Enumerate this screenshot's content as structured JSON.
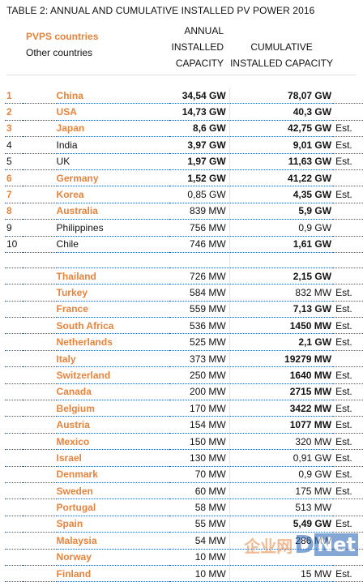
{
  "title": "TABLE 2: ANNUAL AND CUMULATIVE INSTALLED PV POWER 2016",
  "legend": {
    "pvps": "PVPS countries",
    "other": "Other countries"
  },
  "headers": {
    "annual": [
      "ANNUAL",
      "INSTALLED",
      "CAPACITY"
    ],
    "cumulative": [
      "CUMULATIVE",
      "INSTALLED CAPACITY"
    ]
  },
  "colors": {
    "pvps": "#e8833a",
    "rule": "#1f5fb4"
  },
  "rows": [
    {
      "rank": "1",
      "country": "China",
      "annual": "34,54 GW",
      "cumulative": "78,07 GW",
      "est": "",
      "pvps": true,
      "bold_annual": true,
      "bold_cum": true
    },
    {
      "rank": "2",
      "country": "USA",
      "annual": "14,73 GW",
      "cumulative": "40,3 GW",
      "est": "",
      "pvps": true,
      "bold_annual": true,
      "bold_cum": true
    },
    {
      "rank": "3",
      "country": "Japan",
      "annual": "8,6 GW",
      "cumulative": "42,75 GW",
      "est": "Est.",
      "pvps": true,
      "bold_annual": true,
      "bold_cum": true
    },
    {
      "rank": "4",
      "country": "India",
      "annual": "3,97 GW",
      "cumulative": "9,01 GW",
      "est": "Est.",
      "pvps": false,
      "bold_annual": true,
      "bold_cum": true
    },
    {
      "rank": "5",
      "country": "UK",
      "annual": "1,97 GW",
      "cumulative": "11,63 GW",
      "est": "Est.",
      "pvps": false,
      "bold_annual": true,
      "bold_cum": true
    },
    {
      "rank": "6",
      "country": "Germany",
      "annual": "1,52 GW",
      "cumulative": "41,22 GW",
      "est": "",
      "pvps": true,
      "bold_annual": true,
      "bold_cum": true
    },
    {
      "rank": "7",
      "country": "Korea",
      "annual": "0,85 GW",
      "cumulative": "4,35 GW",
      "est": "Est.",
      "pvps": true,
      "bold_annual": false,
      "bold_cum": true
    },
    {
      "rank": "8",
      "country": "Australia",
      "annual": "839 MW",
      "cumulative": "5,9 GW",
      "est": "",
      "pvps": true,
      "bold_annual": false,
      "bold_cum": true
    },
    {
      "rank": "9",
      "country": "Philippines",
      "annual": "756 MW",
      "cumulative": "0,9 GW",
      "est": "",
      "pvps": false,
      "bold_annual": false,
      "bold_cum": false
    },
    {
      "rank": "10",
      "country": "Chile",
      "annual": "746 MW",
      "cumulative": "1,61 GW",
      "est": "",
      "pvps": false,
      "bold_annual": false,
      "bold_cum": true
    },
    {
      "spacer": true
    },
    {
      "rank": "",
      "country": "Thailand",
      "annual": "726 MW",
      "cumulative": "2,15 GW",
      "est": "",
      "pvps": true,
      "bold_annual": false,
      "bold_cum": true
    },
    {
      "rank": "",
      "country": "Turkey",
      "annual": "584 MW",
      "cumulative": "832 MW",
      "est": "Est.",
      "pvps": true,
      "bold_annual": false,
      "bold_cum": false
    },
    {
      "rank": "",
      "country": "France",
      "annual": "559 MW",
      "cumulative": "7,13 GW",
      "est": "Est.",
      "pvps": true,
      "bold_annual": false,
      "bold_cum": true
    },
    {
      "rank": "",
      "country": "South Africa",
      "annual": "536 MW",
      "cumulative": "1450 MW",
      "est": "Est.",
      "pvps": true,
      "bold_annual": false,
      "bold_cum": true
    },
    {
      "rank": "",
      "country": "Netherlands",
      "annual": "525 MW",
      "cumulative": "2,1 GW",
      "est": "Est.",
      "pvps": true,
      "bold_annual": false,
      "bold_cum": true
    },
    {
      "rank": "",
      "country": "Italy",
      "annual": "373 MW",
      "cumulative": "19279 MW",
      "est": "",
      "pvps": true,
      "bold_annual": false,
      "bold_cum": true
    },
    {
      "rank": "",
      "country": "Switzerland",
      "annual": "250 MW",
      "cumulative": "1640 MW",
      "est": "Est.",
      "pvps": true,
      "bold_annual": false,
      "bold_cum": true
    },
    {
      "rank": "",
      "country": "Canada",
      "annual": "200 MW",
      "cumulative": "2715 MW",
      "est": "Est.",
      "pvps": true,
      "bold_annual": false,
      "bold_cum": true
    },
    {
      "rank": "",
      "country": "Belgium",
      "annual": "170 MW",
      "cumulative": "3422 MW",
      "est": "Est.",
      "pvps": true,
      "bold_annual": false,
      "bold_cum": true
    },
    {
      "rank": "",
      "country": "Austria",
      "annual": "154 MW",
      "cumulative": "1077 MW",
      "est": "Est.",
      "pvps": true,
      "bold_annual": false,
      "bold_cum": true
    },
    {
      "rank": "",
      "country": "Mexico",
      "annual": "150 MW",
      "cumulative": "320 MW",
      "est": "Est.",
      "pvps": true,
      "bold_annual": false,
      "bold_cum": false
    },
    {
      "rank": "",
      "country": "Israel",
      "annual": "130 MW",
      "cumulative": "0,91 GW",
      "est": "Est.",
      "pvps": true,
      "bold_annual": false,
      "bold_cum": false
    },
    {
      "rank": "",
      "country": "Denmark",
      "annual": "70 MW",
      "cumulative": "0,9 GW",
      "est": "Est.",
      "pvps": true,
      "bold_annual": false,
      "bold_cum": false
    },
    {
      "rank": "",
      "country": "Sweden",
      "annual": "60 MW",
      "cumulative": "175 MW",
      "est": "Est.",
      "pvps": true,
      "bold_annual": false,
      "bold_cum": false
    },
    {
      "rank": "",
      "country": "Portugal",
      "annual": "58 MW",
      "cumulative": "513 MW",
      "est": "",
      "pvps": true,
      "bold_annual": false,
      "bold_cum": false
    },
    {
      "rank": "",
      "country": "Spain",
      "annual": "55 MW",
      "cumulative": "5,49 GW",
      "est": "Est.",
      "pvps": true,
      "bold_annual": false,
      "bold_cum": true
    },
    {
      "rank": "",
      "country": "Malaysia",
      "annual": "54 MW",
      "cumulative": "286 MW",
      "est": "",
      "pvps": true,
      "bold_annual": false,
      "bold_cum": false
    },
    {
      "rank": "",
      "country": "Norway",
      "annual": "10 MW",
      "cumulative": "",
      "est": "",
      "pvps": true,
      "bold_annual": false,
      "bold_cum": false
    },
    {
      "rank": "",
      "country": "Finland",
      "annual": "10 MW",
      "cumulative": "15 MW",
      "est": "Est.",
      "pvps": true,
      "bold_annual": false,
      "bold_cum": false
    }
  ],
  "watermark": {
    "cn": "企业网",
    "d": "D",
    "net": "Net"
  }
}
